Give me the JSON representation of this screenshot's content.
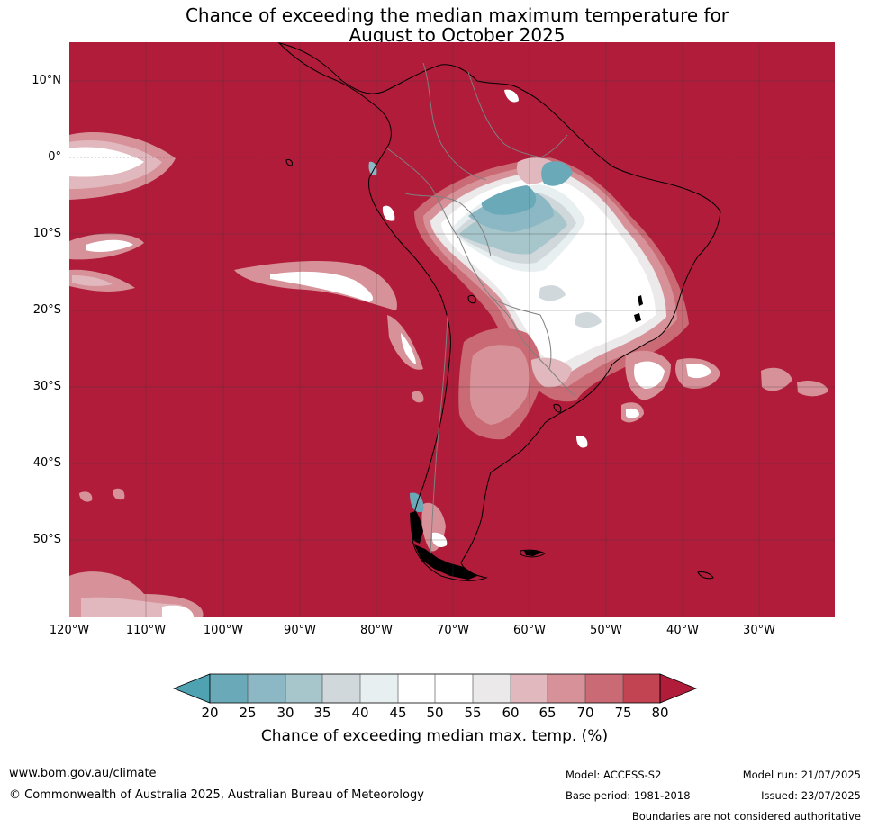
{
  "title": {
    "line1": "Chance of exceeding the median maximum temperature for",
    "line2": "August to October 2025"
  },
  "map": {
    "region": "South America",
    "lat_labels": [
      "10°N",
      "0°",
      "10°S",
      "20°S",
      "30°S",
      "40°S",
      "50°S"
    ],
    "lon_labels": [
      "120°W",
      "110°W",
      "100°W",
      "90°W",
      "80°W",
      "70°W",
      "60°W",
      "50°W",
      "40°W",
      "30°W"
    ],
    "colors": {
      "above_80": "#b01c3a",
      "75_80": "#c24352",
      "70_75": "#c96a74",
      "65_70": "#d79299",
      "60_65": "#e1b8bd",
      "55_60": "#ebe9ea",
      "50_55": "#ffffff",
      "45_50": "#ffffff",
      "40_45": "#e8eff1",
      "35_40": "#d0d8db",
      "30_35": "#a7c6cb",
      "25_30": "#8cb8c5",
      "20_25": "#6aa9b7",
      "below_20": "#4ea2b2"
    }
  },
  "colorbar": {
    "ticks": [
      "20",
      "25",
      "30",
      "35",
      "40",
      "45",
      "50",
      "55",
      "60",
      "65",
      "70",
      "75",
      "80"
    ],
    "title": "Chance of exceeding median max. temp. (%)"
  },
  "footer": {
    "website": "www.bom.gov.au/climate",
    "copyright": "© Commonwealth of Australia 2025, Australian Bureau of Meteorology",
    "model": "Model: ACCESS-S2",
    "base_period": "Base period: 1981-2018",
    "model_run": "Model run: 21/07/2025",
    "issued": "Issued: 23/07/2025",
    "disclaimer": "Boundaries are not considered authoritative"
  }
}
